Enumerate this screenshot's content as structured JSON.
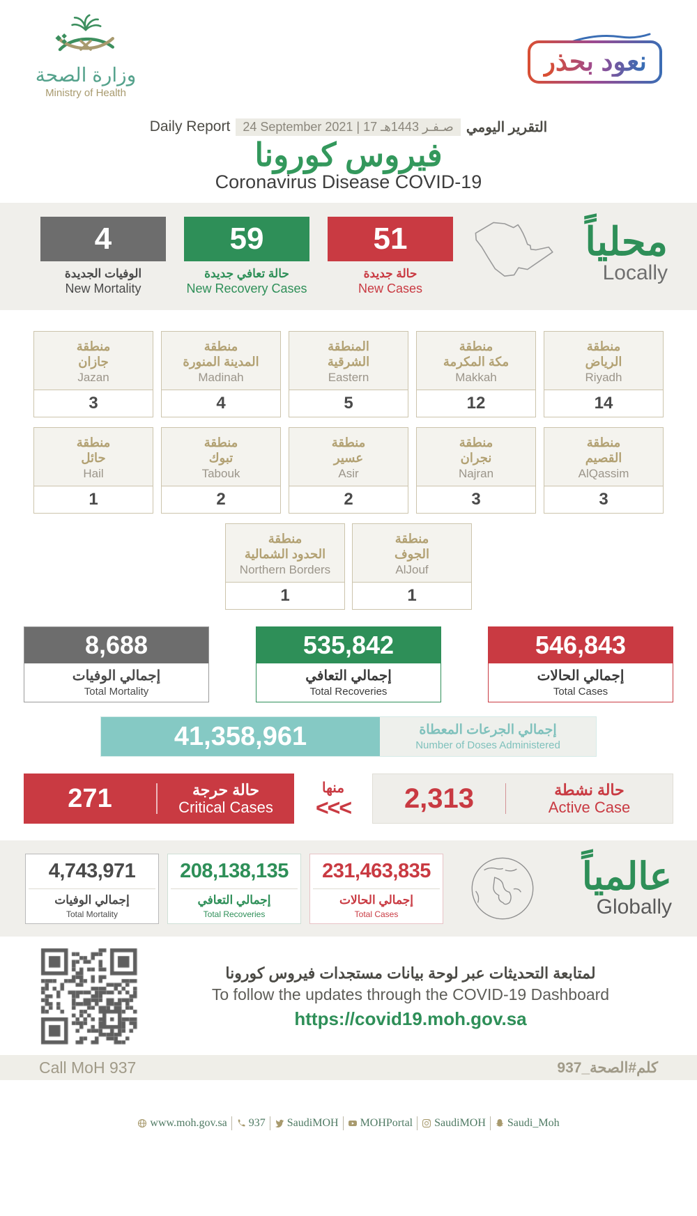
{
  "colors": {
    "green": "#2e8f58",
    "red": "#c93a42",
    "gray": "#6d6d6d",
    "teal": "#85c9c4",
    "tan": "#b2a173"
  },
  "header": {
    "logo_ar": "وزارة الصحة",
    "logo_en": "Ministry of Health",
    "badge": "نعود بحذر",
    "report_en": "Daily Report",
    "report_date": "24 September 2021 | 17 صـفـر 1443هـ",
    "report_ar": "التقرير اليومي",
    "title_ar": "فيروس كورونا",
    "title_en": "Coronavirus Disease COVID-19"
  },
  "locally": {
    "title_ar": "محلياً",
    "title_en": "Locally",
    "stats": [
      {
        "value": "4",
        "ar": "الوفيات الجديدة",
        "en": "New Mortality"
      },
      {
        "value": "59",
        "ar": "حالة تعافي جديدة",
        "en": "New Recovery Cases"
      },
      {
        "value": "51",
        "ar": "حالة جديدة",
        "en": "New Cases"
      }
    ]
  },
  "regions": {
    "row1": [
      {
        "ar": "منطقة\nجازان",
        "en": "Jazan",
        "value": "3"
      },
      {
        "ar": "منطقة\nالمدينة المنورة",
        "en": "Madinah",
        "value": "4"
      },
      {
        "ar": "المنطقة\nالشرقية",
        "en": "Eastern",
        "value": "5"
      },
      {
        "ar": "منطقة\nمكة المكرمة",
        "en": "Makkah",
        "value": "12"
      },
      {
        "ar": "منطقة\nالرياض",
        "en": "Riyadh",
        "value": "14"
      }
    ],
    "row2": [
      {
        "ar": "منطقة\nحائل",
        "en": "Hail",
        "value": "1"
      },
      {
        "ar": "منطقة\nتبوك",
        "en": "Tabouk",
        "value": "2"
      },
      {
        "ar": "منطقة\nعسير",
        "en": "Asir",
        "value": "2"
      },
      {
        "ar": "منطقة\nنجران",
        "en": "Najran",
        "value": "3"
      },
      {
        "ar": "منطقة\nالقصيم",
        "en": "AlQassim",
        "value": "3"
      }
    ],
    "row3": [
      {
        "ar": "منطقة\nالحدود الشمالية",
        "en": "Northern Borders",
        "value": "1"
      },
      {
        "ar": "منطقة\nالجوف",
        "en": "AlJouf",
        "value": "1"
      }
    ]
  },
  "totals": [
    {
      "value": "8,688",
      "ar": "إجمالي الوفيات",
      "en": "Total Mortality"
    },
    {
      "value": "535,842",
      "ar": "إجمالي التعافي",
      "en": "Total Recoveries"
    },
    {
      "value": "546,843",
      "ar": "إجمالي الحالات",
      "en": "Total Cases"
    }
  ],
  "doses": {
    "value": "41,358,961",
    "ar": "إجمالي الجرعات المعطاة",
    "en": "Number of Doses Administered"
  },
  "critical": {
    "value": "271",
    "ar": "حالة حرجة",
    "en": "Critical Cases"
  },
  "of_which": {
    "ar": "منها",
    "chevrons": "<<<"
  },
  "active": {
    "value": "2,313",
    "ar": "حالة نشطة",
    "en": "Active Case"
  },
  "globally": {
    "title_ar": "عالمياً",
    "title_en": "Globally",
    "cards": [
      {
        "value": "4,743,971",
        "ar": "إجمالي الوفيات",
        "en": "Total Mortality"
      },
      {
        "value": "208,138,135",
        "ar": "إجمالي التعافي",
        "en": "Total Recoveries"
      },
      {
        "value": "231,463,835",
        "ar": "إجمالي الحالات",
        "en": "Total Cases"
      }
    ]
  },
  "dashboard": {
    "ar": "لمتابعة التحديثات عبر لوحة بيانات مستجدات فيروس كورونا",
    "en": "To follow the updates through the COVID-19 Dashboard",
    "url": "https://covid19.moh.gov.sa"
  },
  "call": {
    "en": "Call MoH 937",
    "ar": "كلم#الصحة_937"
  },
  "footer": {
    "items": [
      "www.moh.gov.sa",
      "937",
      "SaudiMOH",
      "MOHPortal",
      "SaudiMOH",
      "Saudi_Moh"
    ]
  }
}
